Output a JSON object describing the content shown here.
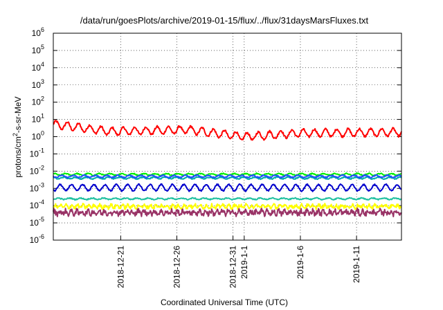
{
  "chart_data": {
    "type": "line",
    "title": "/data/run/goesPlots/archive/2019-01-15/flux/../flux/31daysMarsFluxes.txt",
    "xlabel": "Coordinated Universal Time (UTC)",
    "ylabel": "protons/cm2-s-sr-MeV",
    "ylabel_base": "protons/cm",
    "ylabel_sup": "2",
    "ylabel_rest": "-s-sr-MeV",
    "y_scale": "log",
    "ylim": [
      1e-06,
      1000000.0
    ],
    "x_start": "2018-12-15",
    "x_end": "2019-01-15",
    "grid": true,
    "y_ticks": [
      {
        "base": "10",
        "exp": "-6"
      },
      {
        "base": "10",
        "exp": "-5"
      },
      {
        "base": "10",
        "exp": "-4"
      },
      {
        "base": "10",
        "exp": "-3"
      },
      {
        "base": "10",
        "exp": "-2"
      },
      {
        "base": "10",
        "exp": "-1"
      },
      {
        "base": "10",
        "exp": "0"
      },
      {
        "base": "10",
        "exp": "1"
      },
      {
        "base": "10",
        "exp": "2"
      },
      {
        "base": "10",
        "exp": "3"
      },
      {
        "base": "10",
        "exp": "4"
      },
      {
        "base": "10",
        "exp": "5"
      },
      {
        "base": "10",
        "exp": "6"
      }
    ],
    "x_ticks": [
      {
        "date": "2018-12-21",
        "label": "2018-12-21"
      },
      {
        "date": "2018-12-26",
        "label": "2018-12-26"
      },
      {
        "date": "2018-12-31",
        "label": "2018-12-31"
      },
      {
        "date": "2019-01-01",
        "label": "2019-1-1"
      },
      {
        "date": "2019-01-06",
        "label": "2019-1-6"
      },
      {
        "date": "2019-01-11",
        "label": "2019-1-11"
      }
    ],
    "series": [
      {
        "color": "#ff0000",
        "base": 1.8,
        "amp": 0.22,
        "period_days": 1.0,
        "noise": 0.06,
        "values": [
          [
            0,
            5.0
          ],
          [
            1.5,
            4.0
          ],
          [
            5,
            2.0
          ],
          [
            12,
            2.5
          ],
          [
            17,
            1.0
          ],
          [
            22,
            1.6
          ],
          [
            31,
            1.8
          ]
        ]
      },
      {
        "color": "#00ee00",
        "base": 0.0065,
        "amp": 0.05,
        "period_days": 1.0,
        "noise": 0.03
      },
      {
        "color": "#00aaaa",
        "base": 0.004,
        "amp": 0.05,
        "period_days": 1.0,
        "noise": 0.03
      },
      {
        "color": "#1f4fff",
        "base": 0.005,
        "amp": 0.06,
        "period_days": 1.0,
        "noise": 0.03
      },
      {
        "color": "#0000cc",
        "base": 0.0011,
        "amp": 0.18,
        "period_days": 1.0,
        "noise": 0.04
      },
      {
        "color": "#20c0a0",
        "base": 0.00025,
        "amp": 0.04,
        "period_days": 1.0,
        "noise": 0.03
      },
      {
        "color": "#ffff00",
        "base": 9e-05,
        "amp": 0.08,
        "period_days": 0.5,
        "noise": 0.1
      },
      {
        "color": "#993366",
        "base": 4e-05,
        "amp": 0.1,
        "period_days": 0.5,
        "noise": 0.15
      }
    ]
  }
}
